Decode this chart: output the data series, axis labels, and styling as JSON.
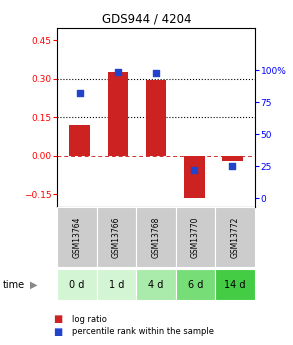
{
  "title": "GDS944 / 4204",
  "categories": [
    "GSM13764",
    "GSM13766",
    "GSM13768",
    "GSM13770",
    "GSM13772"
  ],
  "time_labels": [
    "0 d",
    "1 d",
    "4 d",
    "6 d",
    "14 d"
  ],
  "log_ratio": [
    0.12,
    0.325,
    0.295,
    -0.165,
    -0.02
  ],
  "percentile_rank": [
    82,
    99,
    98,
    22,
    25
  ],
  "bar_color": "#cc2222",
  "dot_color": "#2244cc",
  "ylim_left": [
    -0.2,
    0.5
  ],
  "ylim_right": [
    -6.67,
    133.33
  ],
  "yticks_left": [
    -0.15,
    0.0,
    0.15,
    0.3,
    0.45
  ],
  "yticks_right": [
    0,
    25,
    50,
    75,
    100
  ],
  "hlines": [
    0.15,
    0.3
  ],
  "zero_line": 0.0,
  "bar_width": 0.55,
  "background_color": "#ffffff",
  "plot_bg_color": "#ffffff",
  "time_row_colors": [
    "#d4f5d4",
    "#d4f5d4",
    "#aaeaaa",
    "#77dd77",
    "#44cc44"
  ],
  "gsm_row_color": "#cccccc",
  "legend_items": [
    "log ratio",
    "percentile rank within the sample"
  ]
}
